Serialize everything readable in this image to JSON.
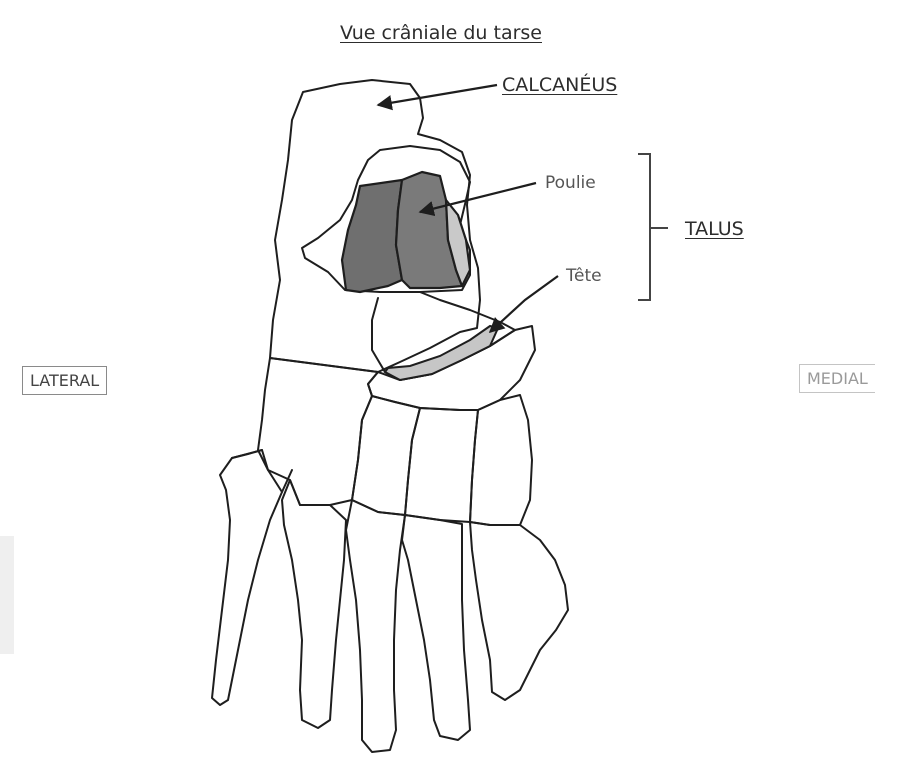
{
  "title": "Vue crâniale du tarse",
  "labels": {
    "calcaneus": "CALCANÉUS",
    "poulie": "Poulie",
    "talus": "TALUS",
    "tete": "Tête",
    "lateral": "LATERAL",
    "medial": "MEDIAL"
  },
  "colors": {
    "outline": "#1e1e1e",
    "poulie_fill": "#6f6f6f",
    "poulie_light_fill": "#c9c9c9",
    "tete_fill": "#c6c6c6"
  }
}
